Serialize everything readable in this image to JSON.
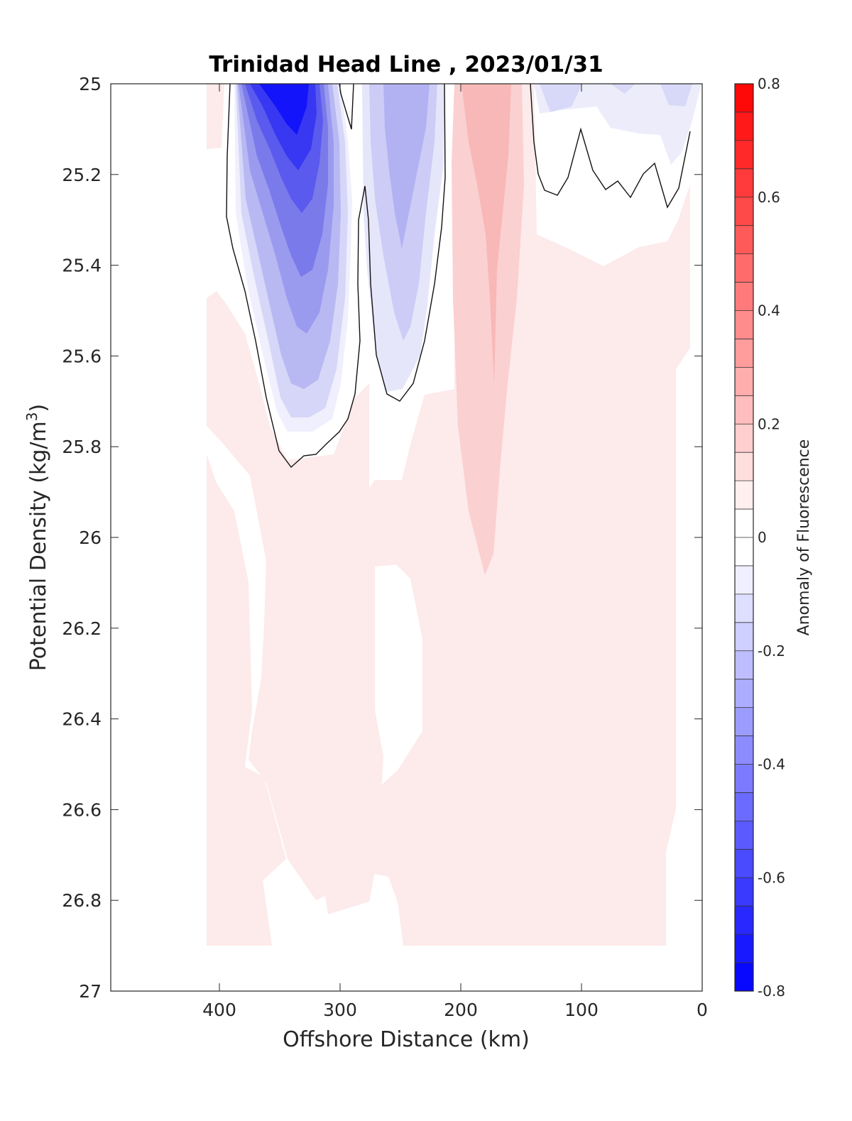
{
  "chart_data": {
    "type": "filled-contour",
    "title": "Trinidad Head Line , 2023/01/31",
    "xlabel": "Offshore Distance (km)",
    "ylabel_main": "Potential Density (kg/m",
    "ylabel_sup": "3",
    "ylabel_close": ")",
    "x_reversed": true,
    "xlim": [
      0,
      490
    ],
    "ylim": [
      25,
      27
    ],
    "y_reversed": true,
    "xticks": [
      400,
      300,
      200,
      100,
      0
    ],
    "yticks": [
      "25",
      "25.2",
      "25.4",
      "25.6",
      "25.8",
      "26",
      "26.2",
      "26.4",
      "26.6",
      "26.8",
      "27"
    ],
    "colorbar": {
      "label": "Anomaly of Fluorescence",
      "range": [
        -0.8,
        0.8
      ],
      "levels_step": 0.05,
      "ticks": [
        "-0.8",
        "-0.6",
        "-0.4",
        "-0.2",
        "0",
        "0.2",
        "0.4",
        "0.6",
        "0.8"
      ],
      "colors": {
        "negative": "#0000ff",
        "zero": "#ffffff",
        "positive": "#ff0000"
      }
    },
    "data_extent": {
      "x": [
        12,
        410
      ],
      "y": [
        25,
        26.9
      ]
    },
    "regions": [
      {
        "sign": "negative",
        "feature": "strong negative anomaly core",
        "x_center": 345,
        "y_center": 25.2,
        "min_value": -0.6
      },
      {
        "sign": "negative",
        "feature": "secondary negative anomaly",
        "x_center": 245,
        "y_center": 25.2,
        "min_value": -0.3
      },
      {
        "sign": "negative",
        "feature": "weak negative patches near surface",
        "x_range": [
          10,
          140
        ],
        "y_range": [
          25,
          25.2
        ],
        "min_value": -0.15
      },
      {
        "sign": "positive",
        "feature": "positive anomaly column",
        "x_center": 180,
        "y_center": 25.3,
        "max_value": 0.2
      },
      {
        "sign": "positive",
        "feature": "weak positive background at depth",
        "x_range": [
          12,
          410
        ],
        "y_range": [
          25.4,
          26.9
        ],
        "max_value": 0.05
      }
    ],
    "zero_contour_segments": 3
  }
}
